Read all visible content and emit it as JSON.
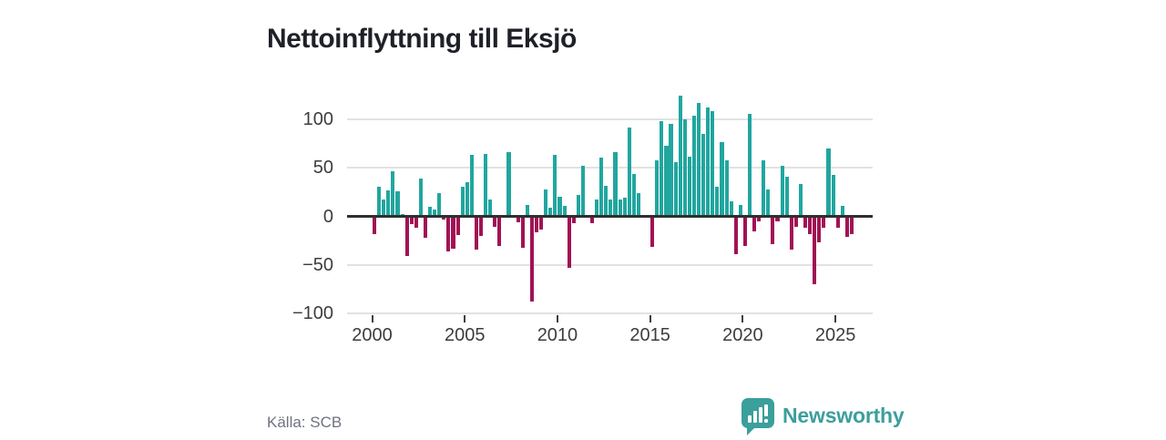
{
  "title": "Nettoinflyttning till Eksjö",
  "source": "Källa: SCB",
  "branding": {
    "name": "Newsworthy",
    "color": "#3b9f9c",
    "icon": "speech-bubble-chart-icon"
  },
  "chart_data": {
    "type": "bar",
    "title": "Nettoinflyttning till Eksjö",
    "frequency": "quarterly",
    "start_period": "2000-Q1",
    "end_period": "2025-Q4",
    "xlabel": "",
    "ylabel": "",
    "x_tick_labels": [
      "2000",
      "2005",
      "2010",
      "2015",
      "2020",
      "2025"
    ],
    "y_ticks": [
      100,
      50,
      0,
      -50,
      -100
    ],
    "y_tick_labels": [
      "100",
      "50",
      "0",
      "−50",
      "−100"
    ],
    "ylim": [
      -100,
      128
    ],
    "grid": true,
    "legend": "none",
    "colors": {
      "positive": "#21a69f",
      "negative": "#a11254"
    },
    "values": [
      -18,
      30,
      17,
      27,
      46,
      26,
      2,
      -41,
      -8,
      -12,
      39,
      -22,
      10,
      7,
      24,
      -3,
      -36,
      -33,
      -19,
      30,
      35,
      63,
      -34,
      -20,
      64,
      17,
      -11,
      -30,
      0,
      66,
      0,
      -6,
      -32,
      12,
      -88,
      -16,
      -14,
      28,
      9,
      63,
      20,
      11,
      -53,
      -7,
      22,
      52,
      0,
      -7,
      17,
      60,
      31,
      17,
      66,
      17,
      19,
      91,
      44,
      24,
      0,
      0,
      -31,
      58,
      98,
      73,
      95,
      56,
      124,
      100,
      61,
      104,
      117,
      85,
      112,
      108,
      30,
      76,
      58,
      15,
      -39,
      12,
      -30,
      105,
      -15,
      -5,
      58,
      28,
      -29,
      -5,
      52,
      41,
      -34,
      -11,
      33,
      -12,
      -18,
      -70,
      -27,
      -12,
      70,
      43,
      -12,
      11,
      -21,
      -18
    ]
  }
}
